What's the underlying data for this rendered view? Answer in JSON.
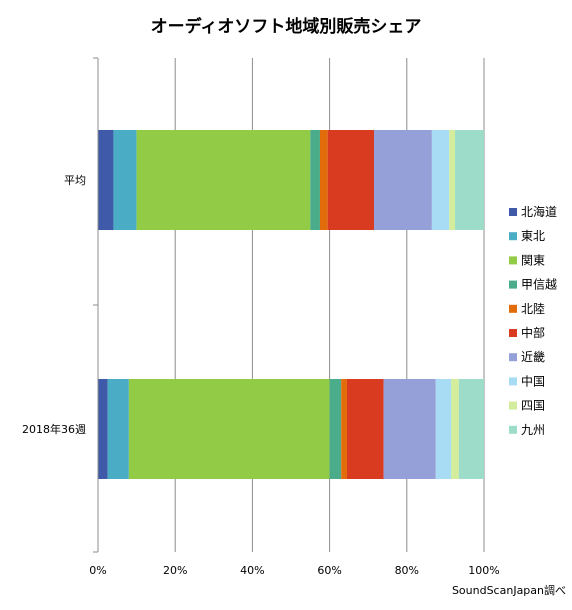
{
  "chart_data": {
    "type": "bar",
    "orientation": "horizontal",
    "stacked": "percent",
    "title": "オーディオソフト地域別販売シェア",
    "xlabel": "",
    "ylabel": "",
    "xlim": [
      0,
      100
    ],
    "x_ticks": [
      "0%",
      "20%",
      "40%",
      "60%",
      "80%",
      "100%"
    ],
    "grid": "vertical",
    "legend_position": "right",
    "categories": [
      "平均",
      "2018年36週"
    ],
    "series": [
      {
        "name": "北海道",
        "color": "#3f5aa8",
        "values": [
          4,
          2.5
        ]
      },
      {
        "name": "東北",
        "color": "#4bacc6",
        "values": [
          6,
          5.5
        ]
      },
      {
        "name": "関東",
        "color": "#92cc47",
        "values": [
          45,
          52
        ]
      },
      {
        "name": "甲信越",
        "color": "#4aac8a",
        "values": [
          2.5,
          3
        ]
      },
      {
        "name": "北陸",
        "color": "#e36c0a",
        "values": [
          2,
          1.5
        ]
      },
      {
        "name": "中部",
        "color": "#d83b20",
        "values": [
          12,
          9.5
        ]
      },
      {
        "name": "近畿",
        "color": "#95a0d8",
        "values": [
          15,
          13.5
        ]
      },
      {
        "name": "中国",
        "color": "#a7dcf4",
        "values": [
          4.5,
          4
        ]
      },
      {
        "name": "四国",
        "color": "#d3ed9c",
        "values": [
          1.5,
          2
        ]
      },
      {
        "name": "九州",
        "color": "#9cdcc8",
        "values": [
          7.5,
          6.5
        ]
      }
    ]
  },
  "source_note": "SoundScanJapan調べ"
}
